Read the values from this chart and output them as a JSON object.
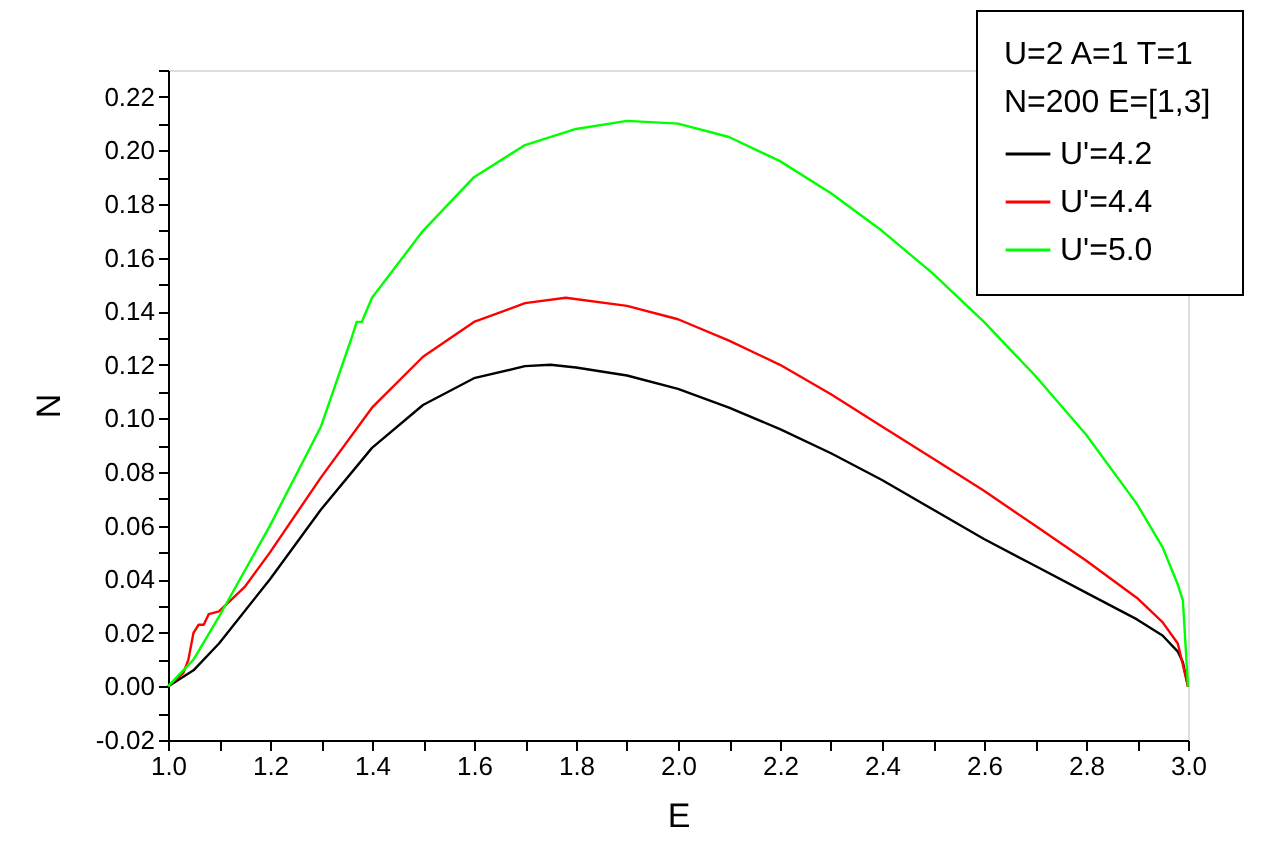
{
  "chart_data": {
    "type": "line",
    "xlabel": "E",
    "ylabel": "N",
    "legend_title": "U=2  A=1  T=1\nN=200 E=[1,3]",
    "legend": "top right",
    "grid": false,
    "marker": "none",
    "line_style": "solid",
    "xlim": [
      1.0,
      3.0
    ],
    "xticks": [
      {
        "value": 1.0,
        "label": "1.0"
      },
      {
        "value": 1.1,
        "label": null
      },
      {
        "value": 1.2,
        "label": "1.2"
      },
      {
        "value": 1.3,
        "label": null
      },
      {
        "value": 1.4,
        "label": "1.4"
      },
      {
        "value": 1.5,
        "label": null
      },
      {
        "value": 1.6,
        "label": "1.6"
      },
      {
        "value": 1.7,
        "label": null
      },
      {
        "value": 1.8,
        "label": "1.8"
      },
      {
        "value": 1.9,
        "label": null
      },
      {
        "value": 2.0,
        "label": "2.0"
      },
      {
        "value": 2.1,
        "label": null
      },
      {
        "value": 2.2,
        "label": "2.2"
      },
      {
        "value": 2.3,
        "label": null
      },
      {
        "value": 2.4,
        "label": "2.4"
      },
      {
        "value": 2.5,
        "label": null
      },
      {
        "value": 2.6,
        "label": "2.6"
      },
      {
        "value": 2.7,
        "label": null
      },
      {
        "value": 2.8,
        "label": "2.8"
      },
      {
        "value": 2.9,
        "label": null
      },
      {
        "value": 3.0,
        "label": "3.0"
      }
    ],
    "ylim": [
      -0.02,
      0.23
    ],
    "yticks": [
      {
        "value": -0.02,
        "label": "-0.02"
      },
      {
        "value": -0.01,
        "label": null
      },
      {
        "value": 0,
        "label": "0.00"
      },
      {
        "value": 0.01,
        "label": null
      },
      {
        "value": 0.02,
        "label": "0.02"
      },
      {
        "value": 0.03,
        "label": null
      },
      {
        "value": 0.04,
        "label": "0.04"
      },
      {
        "value": 0.05,
        "label": null
      },
      {
        "value": 0.06,
        "label": "0.06"
      },
      {
        "value": 0.07,
        "label": null
      },
      {
        "value": 0.08,
        "label": "0.08"
      },
      {
        "value": 0.09,
        "label": null
      },
      {
        "value": 0.1,
        "label": "0.10"
      },
      {
        "value": 0.11,
        "label": null
      },
      {
        "value": 0.12,
        "label": "0.12"
      },
      {
        "value": 0.13,
        "label": null
      },
      {
        "value": 0.14,
        "label": "0.14"
      },
      {
        "value": 0.15,
        "label": null
      },
      {
        "value": 0.16,
        "label": "0.16"
      },
      {
        "value": 0.17,
        "label": null
      },
      {
        "value": 0.18,
        "label": "0.18"
      },
      {
        "value": 0.19,
        "label": null
      },
      {
        "value": 0.2,
        "label": "0.20"
      },
      {
        "value": 0.21,
        "label": null
      },
      {
        "value": 0.22,
        "label": "0.22"
      },
      {
        "value": 0.23,
        "label": null
      }
    ],
    "series": [
      {
        "name": "U'=4.2",
        "color": "#000000",
        "x": [
          1.0,
          1.05,
          1.1,
          1.2,
          1.3,
          1.4,
          1.5,
          1.6,
          1.7,
          1.75,
          1.8,
          1.9,
          2.0,
          2.1,
          2.2,
          2.3,
          2.4,
          2.5,
          2.6,
          2.7,
          2.8,
          2.9,
          2.95,
          2.98,
          2.99,
          3.0
        ],
        "values": [
          0.0,
          0.006,
          0.016,
          0.04,
          0.066,
          0.089,
          0.105,
          0.115,
          0.1195,
          0.12,
          0.119,
          0.116,
          0.111,
          0.104,
          0.096,
          0.087,
          0.077,
          0.066,
          0.055,
          0.045,
          0.035,
          0.025,
          0.019,
          0.013,
          0.009,
          0.0
        ]
      },
      {
        "name": "U'=4.4",
        "color": "#ff0000",
        "x": [
          1.0,
          1.03,
          1.04,
          1.05,
          1.06,
          1.07,
          1.08,
          1.1,
          1.15,
          1.2,
          1.3,
          1.4,
          1.5,
          1.6,
          1.7,
          1.78,
          1.9,
          2.0,
          2.1,
          2.2,
          2.3,
          2.4,
          2.5,
          2.6,
          2.7,
          2.8,
          2.9,
          2.95,
          2.98,
          3.0
        ],
        "values": [
          0.0,
          0.005,
          0.01,
          0.02,
          0.023,
          0.023,
          0.027,
          0.028,
          0.037,
          0.05,
          0.078,
          0.104,
          0.123,
          0.136,
          0.143,
          0.145,
          0.142,
          0.137,
          0.129,
          0.12,
          0.109,
          0.097,
          0.085,
          0.073,
          0.06,
          0.047,
          0.033,
          0.024,
          0.016,
          0.0
        ]
      },
      {
        "name": "U'=5.0",
        "color": "#00ff00",
        "x": [
          1.0,
          1.05,
          1.1,
          1.2,
          1.3,
          1.36,
          1.37,
          1.38,
          1.4,
          1.5,
          1.6,
          1.7,
          1.8,
          1.9,
          2.0,
          2.1,
          2.2,
          2.3,
          2.4,
          2.5,
          2.6,
          2.7,
          2.8,
          2.9,
          2.95,
          2.98,
          2.99,
          3.0
        ],
        "values": [
          0.0,
          0.01,
          0.026,
          0.06,
          0.097,
          0.13,
          0.136,
          0.136,
          0.145,
          0.17,
          0.19,
          0.202,
          0.208,
          0.211,
          0.21,
          0.205,
          0.196,
          0.184,
          0.17,
          0.154,
          0.136,
          0.116,
          0.094,
          0.068,
          0.052,
          0.038,
          0.032,
          0.0
        ]
      }
    ]
  }
}
